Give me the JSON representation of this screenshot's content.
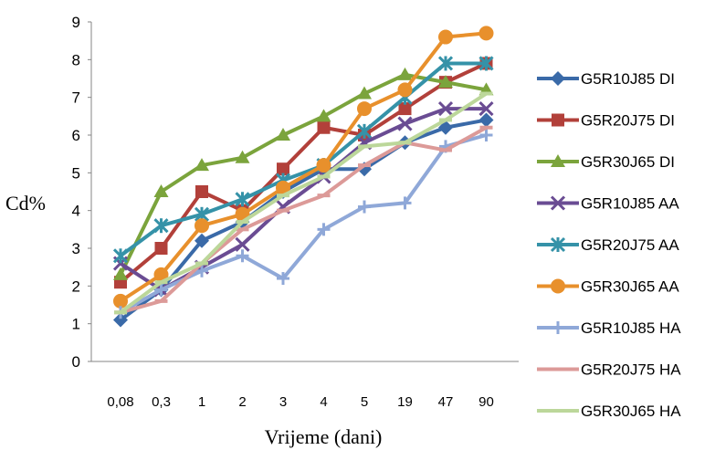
{
  "chart_data": {
    "type": "line",
    "title": "",
    "xlabel": "Vrijeme (dani)",
    "ylabel": "Cd%",
    "categories": [
      "0,08",
      "0,3",
      "1",
      "2",
      "3",
      "4",
      "5",
      "19",
      "47",
      "90"
    ],
    "ylim": [
      0,
      9
    ],
    "yticks": [
      "0",
      "1",
      "2",
      "3",
      "4",
      "5",
      "6",
      "7",
      "8",
      "9"
    ],
    "grid": false,
    "legend_position": "right",
    "series": [
      {
        "name": "G5R10J85  DI",
        "color": "#3a6aa8",
        "marker": "diamond",
        "values": [
          1.1,
          1.9,
          3.2,
          3.7,
          4.5,
          5.1,
          5.1,
          5.8,
          6.2,
          6.4
        ]
      },
      {
        "name": "G5R20J75 DI",
        "color": "#b2403a",
        "marker": "square",
        "values": [
          2.1,
          3.0,
          4.5,
          4.0,
          5.1,
          6.2,
          6.0,
          6.7,
          7.4,
          7.9
        ]
      },
      {
        "name": "G5R30J65 DI",
        "color": "#7ba43c",
        "marker": "triangle",
        "values": [
          2.3,
          4.5,
          5.2,
          5.4,
          6.0,
          6.5,
          7.1,
          7.6,
          7.4,
          7.2
        ]
      },
      {
        "name": "G5R10J85 AA",
        "color": "#6a4c93",
        "marker": "x",
        "values": [
          2.6,
          1.9,
          2.5,
          3.1,
          4.1,
          4.9,
          5.8,
          6.3,
          6.7,
          6.7
        ]
      },
      {
        "name": "G5R20J75 AA",
        "color": "#3592a8",
        "marker": "star",
        "values": [
          2.8,
          3.6,
          3.9,
          4.3,
          4.8,
          5.2,
          6.1,
          7.0,
          7.9,
          7.9
        ]
      },
      {
        "name": "G5R30J65 AA",
        "color": "#e8902c",
        "marker": "circle",
        "values": [
          1.6,
          2.3,
          3.6,
          3.9,
          4.6,
          5.2,
          6.7,
          7.2,
          8.6,
          8.7
        ]
      },
      {
        "name": "G5R10J85 HA",
        "color": "#8fa8d8",
        "marker": "plus",
        "values": [
          1.3,
          1.9,
          2.4,
          2.8,
          2.2,
          3.5,
          4.1,
          4.2,
          5.7,
          6.0
        ]
      },
      {
        "name": "G5R20J75 HA",
        "color": "#dc9a98",
        "marker": "dash",
        "values": [
          1.3,
          1.6,
          2.6,
          3.5,
          4.0,
          4.4,
          5.2,
          5.8,
          5.6,
          6.2
        ]
      },
      {
        "name": "G5R30J65 HA",
        "color": "#bcd79a",
        "marker": "dash",
        "values": [
          1.3,
          2.1,
          2.6,
          3.7,
          4.4,
          4.9,
          5.7,
          5.8,
          6.4,
          7.1
        ]
      }
    ]
  }
}
